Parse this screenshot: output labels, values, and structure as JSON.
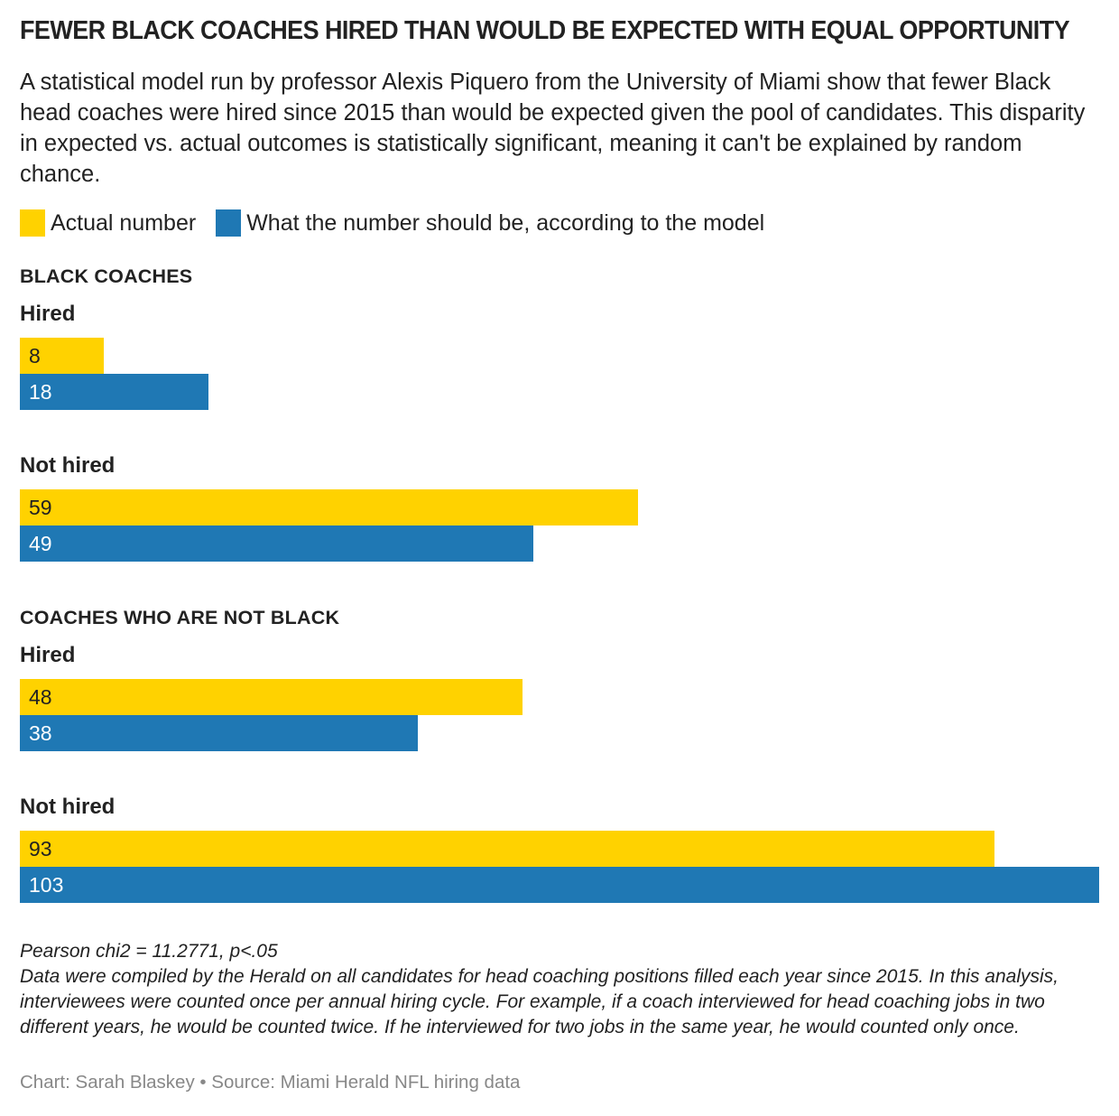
{
  "header": {
    "title": "FEWER BLACK COACHES HIRED THAN WOULD BE EXPECTED WITH EQUAL OPPORTUNITY",
    "subtitle": "A statistical model run by professor Alexis Piquero from the University of Miami show that fewer Black head coaches were hired since 2015 than would be expected given the pool of candidates. This disparity in expected vs. actual outcomes is statistically significant, meaning it can't be explained by random chance."
  },
  "legend": {
    "actual_label": "Actual number",
    "model_label": "What the number should be, according to the model",
    "actual_color": "#FFD200",
    "model_color": "#1F78B4"
  },
  "chart_data": {
    "type": "bar",
    "orientation": "horizontal",
    "xlim": [
      0,
      103
    ],
    "groups": [
      {
        "name": "BLACK COACHES",
        "categories": [
          {
            "label": "Hired",
            "actual": 8,
            "model": 18
          },
          {
            "label": "Not hired",
            "actual": 59,
            "model": 49
          }
        ]
      },
      {
        "name": "COACHES WHO ARE NOT BLACK",
        "categories": [
          {
            "label": "Hired",
            "actual": 48,
            "model": 38
          },
          {
            "label": "Not hired",
            "actual": 93,
            "model": 103
          }
        ]
      }
    ]
  },
  "notes": {
    "stat": "Pearson chi2 = 11.2771, p<.05",
    "methodology": "Data were compiled by the Herald on all candidates for head coaching positions filled each year since 2015. In this analysis, interviewees were counted once per annual hiring cycle.  For example, if a coach interviewed for head coaching jobs in two different years, he would be counted twice. If he interviewed for two jobs in the same year, he would counted only once."
  },
  "credit": "Chart: Sarah Blaskey • Source: Miami Herald NFL hiring data"
}
